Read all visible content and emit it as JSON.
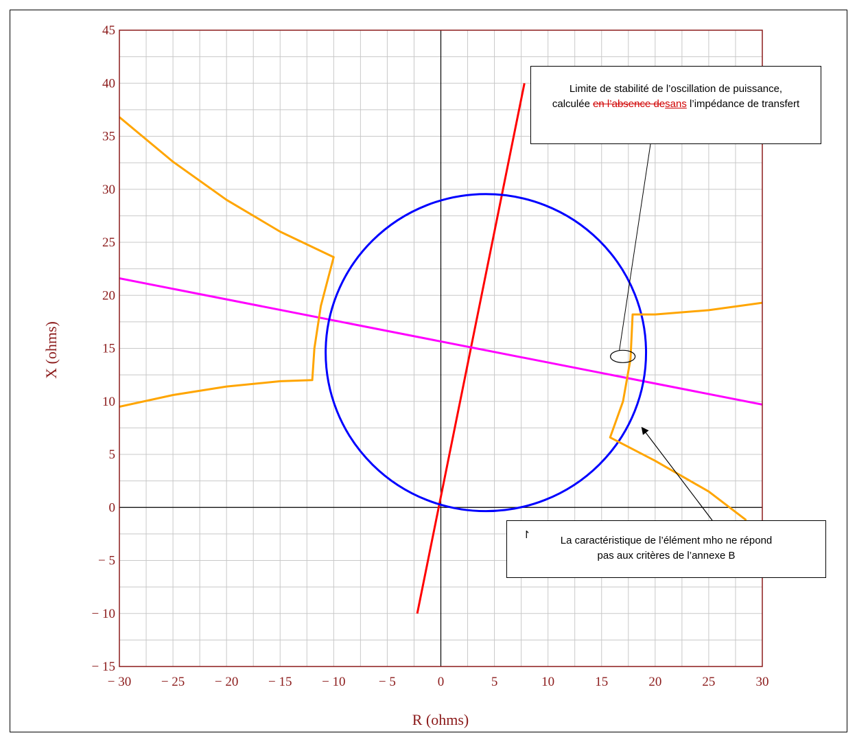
{
  "chart_data": {
    "type": "line",
    "xlabel": "R (ohms)",
    "ylabel": "X (ohms)",
    "xlim": [
      -30,
      30
    ],
    "ylim": [
      -15,
      45
    ],
    "x_ticks": [
      -30,
      -25,
      -20,
      -15,
      -10,
      -5,
      0,
      5,
      10,
      15,
      20,
      25,
      30
    ],
    "y_ticks": [
      -15,
      -10,
      -5,
      0,
      5,
      10,
      15,
      20,
      25,
      30,
      35,
      40,
      45
    ],
    "grid": true,
    "series": [
      {
        "color": "#ff0000",
        "kind": "line",
        "points": [
          [
            -2.2,
            -10
          ],
          [
            7.8,
            40
          ]
        ]
      },
      {
        "color": "#ff00ff",
        "kind": "line",
        "points": [
          [
            -30,
            21.6
          ],
          [
            30,
            9.7
          ]
        ]
      },
      {
        "color": "#0000ff",
        "kind": "circle",
        "center": [
          4.2,
          14.6
        ],
        "radius": 14.95
      },
      {
        "color": "#ffa500",
        "kind": "polyline",
        "points": [
          [
            -30,
            36.8
          ],
          [
            -25,
            32.6
          ],
          [
            -20,
            29.0
          ],
          [
            -15,
            26.0
          ],
          [
            -10,
            23.6
          ],
          [
            -11.2,
            19.0
          ],
          [
            -11.8,
            15.0
          ],
          [
            -12.0,
            12.0
          ],
          [
            -15,
            11.9
          ],
          [
            -20,
            11.4
          ],
          [
            -25,
            10.6
          ],
          [
            -30,
            9.5
          ]
        ]
      },
      {
        "color": "#ffa500",
        "kind": "polyline",
        "points": [
          [
            30,
            19.3
          ],
          [
            25,
            18.6
          ],
          [
            20,
            18.2
          ],
          [
            17.9,
            18.2
          ],
          [
            17.7,
            14.0
          ],
          [
            17.0,
            10.0
          ],
          [
            15.8,
            6.6
          ],
          [
            20,
            4.4
          ],
          [
            25,
            1.5
          ],
          [
            28.5,
            -1.2
          ]
        ]
      }
    ],
    "annotations": [
      {
        "name": "stability-limit-callout",
        "text_before": "Limite de stabilité de l’oscillation de puissance, calculée ",
        "text_deleted": "en l’absence de",
        "text_inserted": "sans",
        "text_after": " l’impédance de transfert",
        "target": [
          17.3,
          14.3
        ]
      },
      {
        "name": "mho-criteria-callout",
        "text": "La caractéristique de l’élément mho ne répond pas aux critères de l’annexe B",
        "target": [
          18.5,
          7.8
        ]
      }
    ]
  },
  "stray_glyph": "↾"
}
